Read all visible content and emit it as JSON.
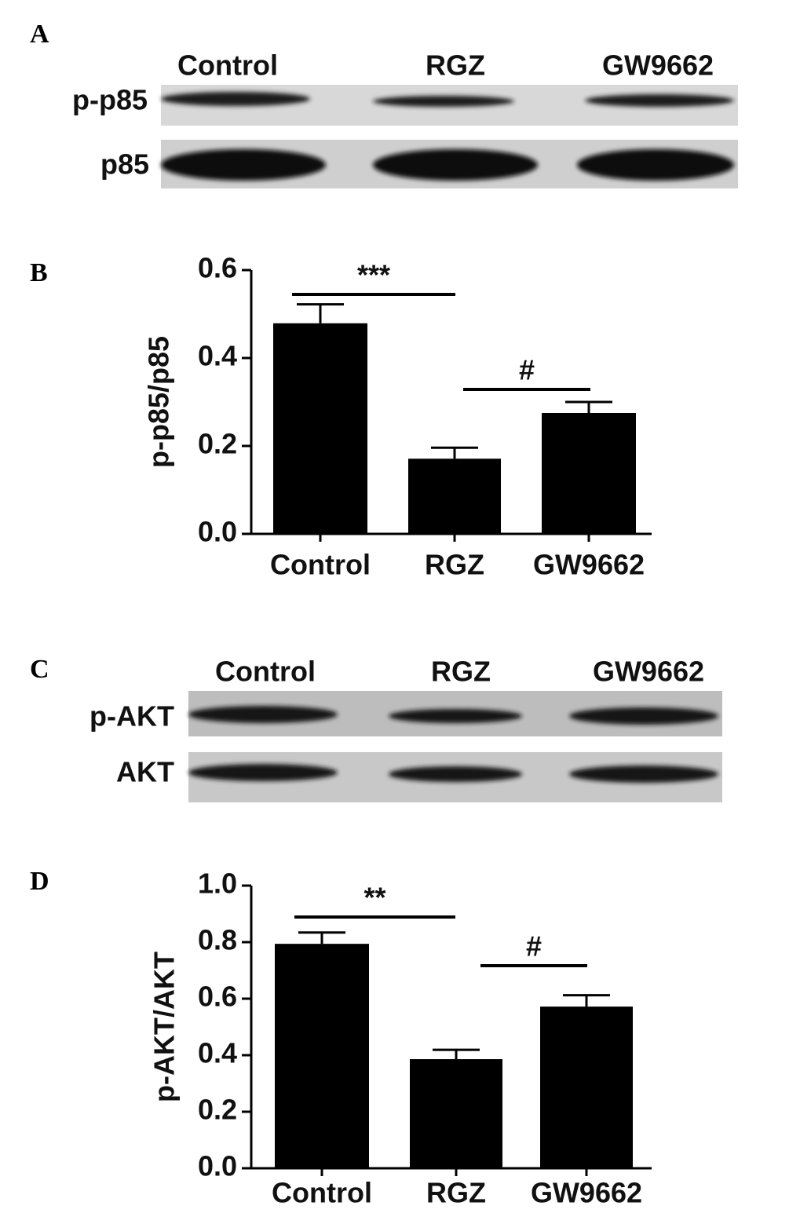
{
  "panels": {
    "A": {
      "label": "A",
      "lanes": [
        "Control",
        "RGZ",
        "GW9662"
      ],
      "rows": [
        "p-p85",
        "p85"
      ]
    },
    "C": {
      "label": "C",
      "lanes": [
        "Control",
        "RGZ",
        "GW9662"
      ],
      "rows": [
        "p-AKT",
        "AKT"
      ]
    }
  },
  "chart_data": [
    {
      "type": "bar",
      "panel_label": "B",
      "ylabel": "p-p85/p85",
      "categories": [
        "Control",
        "RGZ",
        "GW9662"
      ],
      "values": [
        0.479,
        0.171,
        0.275
      ],
      "errors": [
        0.043,
        0.025,
        0.025
      ],
      "color": "#000000",
      "ylim": [
        0,
        0.6
      ],
      "yticks": [
        {
          "value": 0,
          "label": "0.0"
        },
        0.2,
        0.4,
        0.6
      ],
      "annotations": [
        "***",
        "#"
      ]
    },
    {
      "type": "bar",
      "panel_label": "D",
      "ylabel": "p-AKT/AKT",
      "categories": [
        "Control",
        "RGZ",
        "GW9662"
      ],
      "values": [
        0.794,
        0.386,
        0.572
      ],
      "errors": [
        0.04,
        0.033,
        0.04
      ],
      "color": "#000000",
      "ylim": [
        0,
        1.0
      ],
      "yticks": [
        {
          "value": 0,
          "label": "0.0"
        },
        0.2,
        0.4,
        0.6,
        0.8,
        {
          "value": 1.0,
          "label": "1.0"
        }
      ],
      "annotations": [
        "**",
        "#"
      ]
    }
  ]
}
